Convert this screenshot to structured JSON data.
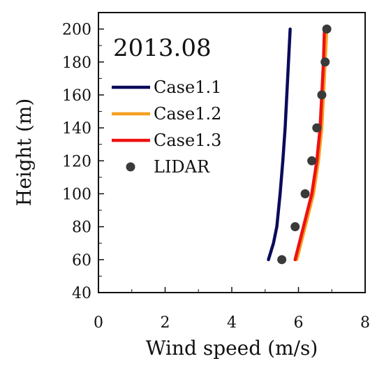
{
  "chart_data": {
    "type": "line",
    "title": "2013.08",
    "xlabel": "Wind speed (m/s)",
    "ylabel": "Height (m)",
    "xlim": [
      0,
      8
    ],
    "ylim": [
      40,
      210
    ],
    "xticks": [
      0,
      2,
      4,
      6,
      8
    ],
    "yticks": [
      40,
      60,
      80,
      100,
      120,
      140,
      160,
      180,
      200
    ],
    "grid": false,
    "legend_position": "top-left",
    "series": [
      {
        "name": "Case1.1",
        "style": "line",
        "color": "#0b0b5c",
        "points": [
          [
            5.1,
            60
          ],
          [
            5.25,
            70
          ],
          [
            5.35,
            80
          ],
          [
            5.45,
            100
          ],
          [
            5.53,
            120
          ],
          [
            5.6,
            140
          ],
          [
            5.65,
            160
          ],
          [
            5.7,
            180
          ],
          [
            5.75,
            200
          ]
        ]
      },
      {
        "name": "Case1.2",
        "style": "line",
        "color": "#f5a020",
        "points": [
          [
            5.95,
            60
          ],
          [
            6.2,
            80
          ],
          [
            6.45,
            100
          ],
          [
            6.6,
            120
          ],
          [
            6.7,
            140
          ],
          [
            6.75,
            160
          ],
          [
            6.8,
            180
          ],
          [
            6.85,
            200
          ]
        ]
      },
      {
        "name": "Case1.3",
        "style": "line",
        "color": "#ee1111",
        "points": [
          [
            5.9,
            60
          ],
          [
            6.15,
            80
          ],
          [
            6.4,
            100
          ],
          [
            6.55,
            120
          ],
          [
            6.65,
            140
          ],
          [
            6.7,
            160
          ],
          [
            6.75,
            180
          ],
          [
            6.78,
            200
          ]
        ]
      },
      {
        "name": "LIDAR",
        "style": "marker",
        "color": "#3a3a3a",
        "points": [
          [
            5.5,
            60
          ],
          [
            5.9,
            80
          ],
          [
            6.2,
            100
          ],
          [
            6.4,
            120
          ],
          [
            6.55,
            140
          ],
          [
            6.7,
            160
          ],
          [
            6.8,
            180
          ],
          [
            6.85,
            200
          ]
        ]
      }
    ]
  }
}
